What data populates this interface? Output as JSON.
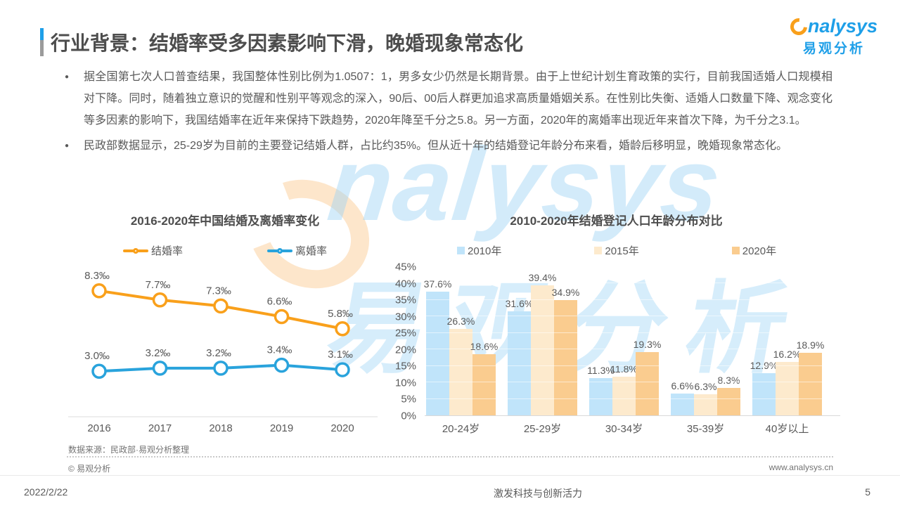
{
  "header": {
    "title": "行业背景：结婚率受多因素影响下滑，晚婚现象常态化",
    "logo": {
      "brand": "analysys",
      "brand_display_rest": "nalysys",
      "brand_cn": "易观分析"
    }
  },
  "bullets": [
    "据全国第七次人口普查结果，我国整体性别比例为1.0507：1，男多女少仍然是长期背景。由于上世纪计划生育政策的实行，目前我国适婚人口规模相对下降。同时，随着独立意识的觉醒和性别平等观念的深入，90后、00后人群更加追求高质量婚姻关系。在性别比失衡、适婚人口数量下降、观念变化等多因素的影响下，我国结婚率在近年来保持下跌趋势，2020年降至千分之5.8。另一方面，2020年的离婚率出现近年来首次下降，为千分之3.1。",
    "民政部数据显示，25-29岁为目前的主要登记结婚人群，占比约35%。但从近十年的结婚登记年龄分布来看，婚龄后移明显，晚婚现象常态化。"
  ],
  "chart_data": [
    {
      "type": "line",
      "title": "2016-2020年中国结婚及离婚率变化",
      "x": [
        "2016",
        "2017",
        "2018",
        "2019",
        "2020"
      ],
      "series": [
        {
          "name": "结婚率",
          "color": "#F9A01B",
          "values": [
            8.3,
            7.7,
            7.3,
            6.6,
            5.8
          ],
          "labels": [
            "8.3‰",
            "7.7‰",
            "7.3‰",
            "6.6‰",
            "5.8‰"
          ]
        },
        {
          "name": "离婚率",
          "color": "#29A3DC",
          "values": [
            3.0,
            3.2,
            3.2,
            3.4,
            3.1
          ],
          "labels": [
            "3.0‰",
            "3.2‰",
            "3.2‰",
            "3.4‰",
            "3.1‰"
          ]
        }
      ],
      "ylim": [
        0,
        8.8
      ],
      "unit": "‰",
      "grid": false,
      "legend_position": "top"
    },
    {
      "type": "bar",
      "title": "2010-2020年结婚登记人口年龄分布对比",
      "categories": [
        "20-24岁",
        "25-29岁",
        "30-34岁",
        "35-39岁",
        "40岁以上"
      ],
      "series": [
        {
          "name": "2010年",
          "color": "#C0E4FA",
          "values": [
            37.6,
            31.6,
            11.3,
            6.6,
            12.9
          ]
        },
        {
          "name": "2015年",
          "color": "#FDEACD",
          "values": [
            26.3,
            39.4,
            11.8,
            6.3,
            16.2
          ]
        },
        {
          "name": "2020年",
          "color": "#FACC8F",
          "values": [
            18.6,
            34.9,
            19.3,
            8.3,
            18.9
          ]
        }
      ],
      "ylim": [
        0,
        45
      ],
      "ytick_step": 5,
      "unit": "%",
      "grid": false,
      "legend_position": "top"
    }
  ],
  "source_note": "数据来源：民政部·易观分析整理",
  "copyright": "© 易观分析",
  "website": "www.analysys.cn",
  "footer": {
    "date": "2022/2/22",
    "slogan": "激发科技与创新活力",
    "page": "5"
  },
  "watermark": {
    "text_en": "nalysys",
    "text_cn": "易观分析"
  },
  "colors": {
    "accent_blue": "#1E9FE8",
    "accent_orange": "#F9A01B",
    "line_marriage": "#F9A01B",
    "line_divorce": "#29A3DC",
    "bar_2010": "#C0E4FA",
    "bar_2015": "#FDEACD",
    "bar_2020": "#FACC8F"
  }
}
